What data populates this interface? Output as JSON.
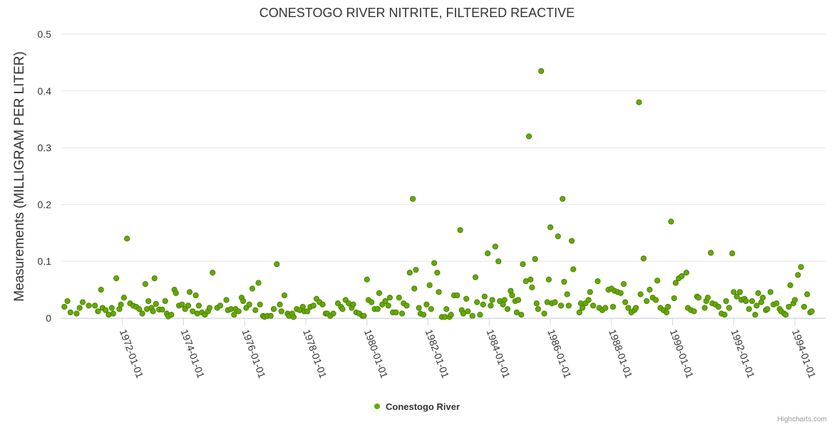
{
  "colors": {
    "series": "#66aa00",
    "series_stroke": "#4a8000",
    "grid": "#e6e6e6",
    "axis": "#ccd6eb",
    "text": "#333333"
  },
  "credits": "Highcharts.com",
  "chart_data": {
    "type": "scatter",
    "title": "CONESTOGO RIVER NITRITE, FILTERED REACTIVE",
    "xlabel": "",
    "ylabel": "Measurements (MILLIGRAM PER LITER)",
    "xlim": [
      1970.0,
      1995.0
    ],
    "ylim": [
      0,
      0.5
    ],
    "yticks": [
      "0",
      "0.1",
      "0.2",
      "0.3",
      "0.4",
      "0.5"
    ],
    "xticks": [
      {
        "value": 1972,
        "label": "1972-01-01"
      },
      {
        "value": 1974,
        "label": "1974-01-01"
      },
      {
        "value": 1976,
        "label": "1976-01-01"
      },
      {
        "value": 1978,
        "label": "1978-01-01"
      },
      {
        "value": 1980,
        "label": "1980-01-01"
      },
      {
        "value": 1982,
        "label": "1982-01-01"
      },
      {
        "value": 1984,
        "label": "1984-01-01"
      },
      {
        "value": 1986,
        "label": "1986-01-01"
      },
      {
        "value": 1988,
        "label": "1988-01-01"
      },
      {
        "value": 1990,
        "label": "1990-01-01"
      },
      {
        "value": 1992,
        "label": "1992-01-01"
      },
      {
        "value": 1994,
        "label": "1994-01-01"
      }
    ],
    "legend": "bottom-center",
    "series": [
      {
        "name": "Conestogo River",
        "points": [
          [
            1970.1,
            0.02
          ],
          [
            1970.2,
            0.03
          ],
          [
            1970.3,
            0.01
          ],
          [
            1970.5,
            0.008
          ],
          [
            1970.6,
            0.018
          ],
          [
            1970.7,
            0.028
          ],
          [
            1970.9,
            0.022
          ],
          [
            1971.1,
            0.022
          ],
          [
            1971.2,
            0.012
          ],
          [
            1971.3,
            0.05
          ],
          [
            1971.35,
            0.018
          ],
          [
            1971.45,
            0.014
          ],
          [
            1971.55,
            0.006
          ],
          [
            1971.65,
            0.018
          ],
          [
            1971.7,
            0.008
          ],
          [
            1971.8,
            0.07
          ],
          [
            1971.9,
            0.016
          ],
          [
            1971.95,
            0.024
          ],
          [
            1972.05,
            0.036
          ],
          [
            1972.15,
            0.14
          ],
          [
            1972.25,
            0.026
          ],
          [
            1972.35,
            0.022
          ],
          [
            1972.45,
            0.02
          ],
          [
            1972.55,
            0.016
          ],
          [
            1972.65,
            0.008
          ],
          [
            1972.75,
            0.06
          ],
          [
            1972.8,
            0.016
          ],
          [
            1972.85,
            0.03
          ],
          [
            1972.95,
            0.018
          ],
          [
            1973.0,
            0.012
          ],
          [
            1973.05,
            0.07
          ],
          [
            1973.1,
            0.025
          ],
          [
            1973.2,
            0.015
          ],
          [
            1973.3,
            0.015
          ],
          [
            1973.4,
            0.03
          ],
          [
            1973.45,
            0.008
          ],
          [
            1973.5,
            0.003
          ],
          [
            1973.6,
            0.006
          ],
          [
            1973.7,
            0.05
          ],
          [
            1973.75,
            0.044
          ],
          [
            1973.85,
            0.022
          ],
          [
            1973.95,
            0.024
          ],
          [
            1974.05,
            0.016
          ],
          [
            1974.15,
            0.022
          ],
          [
            1974.2,
            0.046
          ],
          [
            1974.3,
            0.012
          ],
          [
            1974.4,
            0.04
          ],
          [
            1974.45,
            0.008
          ],
          [
            1974.5,
            0.022
          ],
          [
            1974.6,
            0.01
          ],
          [
            1974.7,
            0.006
          ],
          [
            1974.8,
            0.012
          ],
          [
            1974.85,
            0.018
          ],
          [
            1974.95,
            0.08
          ],
          [
            1975.1,
            0.018
          ],
          [
            1975.2,
            0.022
          ],
          [
            1975.4,
            0.032
          ],
          [
            1975.45,
            0.014
          ],
          [
            1975.55,
            0.016
          ],
          [
            1975.65,
            0.006
          ],
          [
            1975.7,
            0.016
          ],
          [
            1975.8,
            0.012
          ],
          [
            1975.9,
            0.036
          ],
          [
            1975.95,
            0.03
          ],
          [
            1976.05,
            0.018
          ],
          [
            1976.15,
            0.024
          ],
          [
            1976.25,
            0.052
          ],
          [
            1976.35,
            0.014
          ],
          [
            1976.45,
            0.062
          ],
          [
            1976.5,
            0.024
          ],
          [
            1976.6,
            0.004
          ],
          [
            1976.65,
            0.002
          ],
          [
            1976.75,
            0.004
          ],
          [
            1976.85,
            0.004
          ],
          [
            1976.95,
            0.016
          ],
          [
            1977.05,
            0.095
          ],
          [
            1977.15,
            0.024
          ],
          [
            1977.2,
            0.012
          ],
          [
            1977.3,
            0.04
          ],
          [
            1977.4,
            0.008
          ],
          [
            1977.45,
            0.004
          ],
          [
            1977.55,
            0.008
          ],
          [
            1977.6,
            0.002
          ],
          [
            1977.7,
            0.016
          ],
          [
            1977.8,
            0.014
          ],
          [
            1977.9,
            0.02
          ],
          [
            1977.95,
            0.012
          ],
          [
            1978.05,
            0.012
          ],
          [
            1978.15,
            0.02
          ],
          [
            1978.25,
            0.022
          ],
          [
            1978.35,
            0.034
          ],
          [
            1978.45,
            0.028
          ],
          [
            1978.55,
            0.024
          ],
          [
            1978.65,
            0.008
          ],
          [
            1978.7,
            0.008
          ],
          [
            1978.8,
            0.004
          ],
          [
            1978.9,
            0.008
          ],
          [
            1979.05,
            0.026
          ],
          [
            1979.15,
            0.02
          ],
          [
            1979.2,
            0.016
          ],
          [
            1979.3,
            0.032
          ],
          [
            1979.4,
            0.026
          ],
          [
            1979.5,
            0.018
          ],
          [
            1979.55,
            0.024
          ],
          [
            1979.65,
            0.01
          ],
          [
            1979.75,
            0.008
          ],
          [
            1979.85,
            0.004
          ],
          [
            1979.9,
            0.004
          ],
          [
            1980.0,
            0.068
          ],
          [
            1980.05,
            0.032
          ],
          [
            1980.15,
            0.028
          ],
          [
            1980.25,
            0.016
          ],
          [
            1980.35,
            0.016
          ],
          [
            1980.4,
            0.044
          ],
          [
            1980.5,
            0.024
          ],
          [
            1980.6,
            0.03
          ],
          [
            1980.7,
            0.022
          ],
          [
            1980.75,
            0.036
          ],
          [
            1980.85,
            0.01
          ],
          [
            1980.95,
            0.01
          ],
          [
            1981.05,
            0.036
          ],
          [
            1981.15,
            0.008
          ],
          [
            1981.2,
            0.026
          ],
          [
            1981.3,
            0.022
          ],
          [
            1981.4,
            0.08
          ],
          [
            1981.5,
            0.21
          ],
          [
            1981.55,
            0.052
          ],
          [
            1981.6,
            0.085
          ],
          [
            1981.7,
            0.018
          ],
          [
            1981.75,
            0.008
          ],
          [
            1981.85,
            0.006
          ],
          [
            1981.95,
            0.024
          ],
          [
            1982.05,
            0.058
          ],
          [
            1982.1,
            0.016
          ],
          [
            1982.2,
            0.097
          ],
          [
            1982.3,
            0.08
          ],
          [
            1982.35,
            0.046
          ],
          [
            1982.45,
            0.002
          ],
          [
            1982.55,
            0.002
          ],
          [
            1982.6,
            0.016
          ],
          [
            1982.7,
            0.002
          ],
          [
            1982.75,
            0.006
          ],
          [
            1982.85,
            0.04
          ],
          [
            1982.95,
            0.04
          ],
          [
            1983.05,
            0.155
          ],
          [
            1983.1,
            0.014
          ],
          [
            1983.15,
            0.008
          ],
          [
            1983.25,
            0.034
          ],
          [
            1983.3,
            0.012
          ],
          [
            1983.45,
            0.004
          ],
          [
            1983.55,
            0.072
          ],
          [
            1983.6,
            0.028
          ],
          [
            1983.7,
            0.006
          ],
          [
            1983.8,
            0.024
          ],
          [
            1983.85,
            0.038
          ],
          [
            1983.95,
            0.114
          ],
          [
            1984.05,
            0.022
          ],
          [
            1984.1,
            0.032
          ],
          [
            1984.2,
            0.126
          ],
          [
            1984.3,
            0.1
          ],
          [
            1984.35,
            0.03
          ],
          [
            1984.45,
            0.024
          ],
          [
            1984.5,
            0.032
          ],
          [
            1984.6,
            0.016
          ],
          [
            1984.7,
            0.048
          ],
          [
            1984.75,
            0.04
          ],
          [
            1984.85,
            0.03
          ],
          [
            1984.9,
            0.01
          ],
          [
            1984.95,
            0.032
          ],
          [
            1985.05,
            0.006
          ],
          [
            1985.1,
            0.095
          ],
          [
            1985.2,
            0.065
          ],
          [
            1985.3,
            0.32
          ],
          [
            1985.35,
            0.068
          ],
          [
            1985.4,
            0.054
          ],
          [
            1985.5,
            0.104
          ],
          [
            1985.55,
            0.026
          ],
          [
            1985.6,
            0.016
          ],
          [
            1985.7,
            0.435
          ],
          [
            1985.8,
            0.008
          ],
          [
            1985.9,
            0.028
          ],
          [
            1985.95,
            0.068
          ],
          [
            1986.0,
            0.16
          ],
          [
            1986.05,
            0.026
          ],
          [
            1986.15,
            0.028
          ],
          [
            1986.25,
            0.144
          ],
          [
            1986.35,
            0.022
          ],
          [
            1986.4,
            0.21
          ],
          [
            1986.45,
            0.064
          ],
          [
            1986.55,
            0.042
          ],
          [
            1986.6,
            0.022
          ],
          [
            1986.7,
            0.136
          ],
          [
            1986.75,
            0.086
          ],
          [
            1986.95,
            0.01
          ],
          [
            1987.0,
            0.026
          ],
          [
            1987.05,
            0.018
          ],
          [
            1987.15,
            0.026
          ],
          [
            1987.25,
            0.032
          ],
          [
            1987.3,
            0.046
          ],
          [
            1987.4,
            0.022
          ],
          [
            1987.55,
            0.065
          ],
          [
            1987.6,
            0.018
          ],
          [
            1987.7,
            0.014
          ],
          [
            1987.8,
            0.018
          ],
          [
            1987.9,
            0.05
          ],
          [
            1988.0,
            0.052
          ],
          [
            1988.05,
            0.02
          ],
          [
            1988.1,
            0.048
          ],
          [
            1988.2,
            0.046
          ],
          [
            1988.3,
            0.044
          ],
          [
            1988.4,
            0.06
          ],
          [
            1988.45,
            0.028
          ],
          [
            1988.55,
            0.018
          ],
          [
            1988.65,
            0.01
          ],
          [
            1988.75,
            0.014
          ],
          [
            1988.8,
            0.018
          ],
          [
            1988.9,
            0.38
          ],
          [
            1988.95,
            0.042
          ],
          [
            1989.05,
            0.105
          ],
          [
            1989.15,
            0.03
          ],
          [
            1989.25,
            0.05
          ],
          [
            1989.35,
            0.036
          ],
          [
            1989.45,
            0.032
          ],
          [
            1989.5,
            0.066
          ],
          [
            1989.6,
            0.018
          ],
          [
            1989.7,
            0.014
          ],
          [
            1989.8,
            0.01
          ],
          [
            1989.85,
            0.02
          ],
          [
            1989.95,
            0.17
          ],
          [
            1990.05,
            0.035
          ],
          [
            1990.1,
            0.062
          ],
          [
            1990.2,
            0.07
          ],
          [
            1990.3,
            0.074
          ],
          [
            1990.45,
            0.08
          ],
          [
            1990.5,
            0.018
          ],
          [
            1990.6,
            0.014
          ],
          [
            1990.7,
            0.012
          ],
          [
            1990.8,
            0.038
          ],
          [
            1990.85,
            0.036
          ],
          [
            1991.05,
            0.018
          ],
          [
            1991.1,
            0.03
          ],
          [
            1991.15,
            0.036
          ],
          [
            1991.25,
            0.115
          ],
          [
            1991.3,
            0.026
          ],
          [
            1991.4,
            0.024
          ],
          [
            1991.5,
            0.02
          ],
          [
            1991.6,
            0.008
          ],
          [
            1991.7,
            0.006
          ],
          [
            1991.75,
            0.03
          ],
          [
            1991.85,
            0.018
          ],
          [
            1991.95,
            0.114
          ],
          [
            1992.0,
            0.046
          ],
          [
            1992.1,
            0.038
          ],
          [
            1992.2,
            0.046
          ],
          [
            1992.25,
            0.032
          ],
          [
            1992.35,
            0.034
          ],
          [
            1992.4,
            0.03
          ],
          [
            1992.5,
            0.016
          ],
          [
            1992.6,
            0.03
          ],
          [
            1992.7,
            0.006
          ],
          [
            1992.75,
            0.022
          ],
          [
            1992.8,
            0.044
          ],
          [
            1992.9,
            0.028
          ],
          [
            1992.95,
            0.036
          ],
          [
            1993.05,
            0.014
          ],
          [
            1993.1,
            0.016
          ],
          [
            1993.2,
            0.046
          ],
          [
            1993.3,
            0.024
          ],
          [
            1993.4,
            0.026
          ],
          [
            1993.5,
            0.016
          ],
          [
            1993.55,
            0.012
          ],
          [
            1993.65,
            0.008
          ],
          [
            1993.7,
            0.006
          ],
          [
            1993.8,
            0.02
          ],
          [
            1993.85,
            0.058
          ],
          [
            1993.95,
            0.026
          ],
          [
            1994.0,
            0.032
          ],
          [
            1994.1,
            0.076
          ],
          [
            1994.2,
            0.09
          ],
          [
            1994.3,
            0.02
          ],
          [
            1994.4,
            0.042
          ],
          [
            1994.5,
            0.01
          ],
          [
            1994.55,
            0.012
          ]
        ]
      }
    ]
  }
}
